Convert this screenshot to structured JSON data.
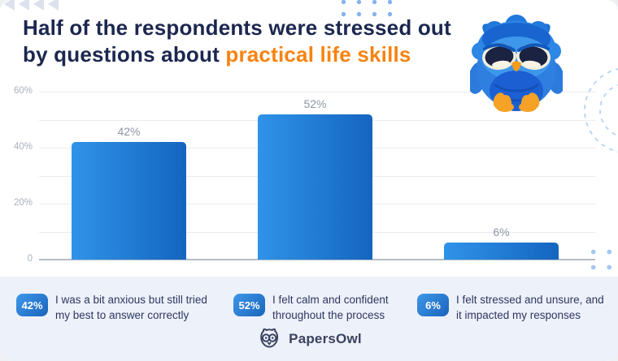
{
  "page": {
    "title_line1": "Half of the respondents were stressed out",
    "title_line2_prefix": "by questions about ",
    "title_line2_highlight": "practical life skills"
  },
  "chart_data": {
    "type": "bar",
    "categories": [
      "I was a bit anxious but still tried my best to answer correctly",
      "I felt calm and confident throughout the process",
      "I felt stressed and unsure, and it impacted my responses"
    ],
    "values": [
      42,
      52,
      6
    ],
    "value_labels": [
      "42%",
      "52%",
      "6%"
    ],
    "yticks": [
      "60%",
      "40%",
      "20%",
      "0"
    ],
    "ylim": [
      0,
      60
    ],
    "grid": true,
    "legend_position": "bottom",
    "bar_color_gradient": [
      "#2F93E8",
      "#1465C0"
    ]
  },
  "legend": {
    "items": [
      {
        "badge": "42%",
        "line1": "I was a bit anxious but still tried",
        "line2": "my best to answer correctly"
      },
      {
        "badge": "52%",
        "line1": "I felt calm and confident",
        "line2": "throughout the process"
      },
      {
        "badge": "6%",
        "line1": "I felt stressed and unsure, and",
        "line2": "it impacted my responses"
      }
    ]
  },
  "footer": {
    "brand": "PapersOwl"
  },
  "colors": {
    "title_navy": "#1C2750",
    "accent_orange": "#F8830F",
    "bar_gradient_start": "#2F93E8",
    "bar_gradient_end": "#1465C0",
    "strip_background": "#EDF1FA",
    "gridline": "#E9EBEF",
    "axis_label": "#A9B1BF"
  }
}
